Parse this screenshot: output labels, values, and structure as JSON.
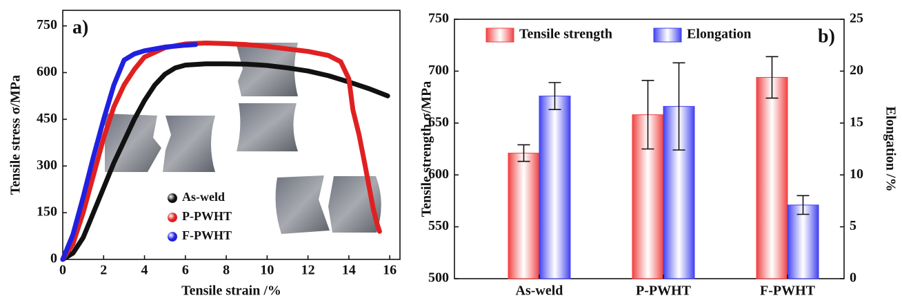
{
  "chart_data": [
    {
      "type": "line",
      "panel_label": "a)",
      "x_label": "Tensile strain /%",
      "y_label": "Tensile stress σ/MPa",
      "xlim": [
        0,
        16.5
      ],
      "xticks": [
        0,
        2,
        4,
        6,
        8,
        10,
        12,
        14,
        16
      ],
      "ylim": [
        0,
        800
      ],
      "yticks": [
        0,
        150,
        300,
        450,
        600,
        750
      ],
      "series": [
        {
          "name": "As-weld",
          "color": "#111111",
          "x": [
            0,
            0.5,
            1,
            1.5,
            2,
            2.5,
            3,
            3.5,
            4,
            4.5,
            5,
            5.5,
            6,
            7,
            8,
            9,
            10,
            11,
            12,
            13,
            14,
            15,
            15.9
          ],
          "values": [
            0,
            20,
            70,
            150,
            230,
            310,
            380,
            450,
            510,
            560,
            595,
            615,
            624,
            628,
            628,
            627,
            623,
            615,
            605,
            590,
            570,
            548,
            525
          ]
        },
        {
          "name": "P-PWHT",
          "color": "#e02020",
          "x": [
            0,
            0.5,
            1,
            1.5,
            2,
            2.5,
            3,
            3.5,
            4,
            5,
            6,
            7,
            8,
            9,
            10,
            11,
            12,
            13,
            13.6,
            14,
            14.2,
            14.5,
            14.8,
            15,
            15.2,
            15.4,
            15.5
          ],
          "values": [
            0,
            50,
            150,
            270,
            390,
            490,
            560,
            610,
            650,
            680,
            692,
            695,
            693,
            690,
            684,
            676,
            668,
            655,
            635,
            580,
            480,
            400,
            300,
            230,
            160,
            110,
            90
          ]
        },
        {
          "name": "F-PWHT",
          "color": "#2020e0",
          "x": [
            0,
            0.5,
            1,
            1.5,
            2,
            2.5,
            3,
            3.5,
            4,
            5,
            6,
            6.5
          ],
          "values": [
            0,
            80,
            200,
            330,
            450,
            560,
            640,
            660,
            670,
            682,
            688,
            690
          ]
        }
      ]
    },
    {
      "type": "bar",
      "panel_label": "b)",
      "y_label": "Tensile strength σ/MPa",
      "y2_label": "Elongation /%",
      "categories": [
        "As-weld",
        "P-PWHT",
        "F-PWHT"
      ],
      "ylim": [
        500,
        750
      ],
      "yticks": [
        500,
        550,
        600,
        650,
        700,
        750
      ],
      "y2lim": [
        0,
        25
      ],
      "y2ticks": [
        0,
        5,
        10,
        15,
        20,
        25
      ],
      "series": [
        {
          "name": "Tensile strength",
          "color": "#f04040",
          "values": [
            621,
            658,
            694
          ],
          "errors": [
            8,
            33,
            20
          ]
        },
        {
          "name": "Elongation",
          "color": "#4040f0",
          "axis": "y2",
          "values": [
            17.6,
            16.6,
            7.1
          ],
          "errors": [
            1.3,
            4.2,
            0.9
          ]
        }
      ]
    }
  ]
}
